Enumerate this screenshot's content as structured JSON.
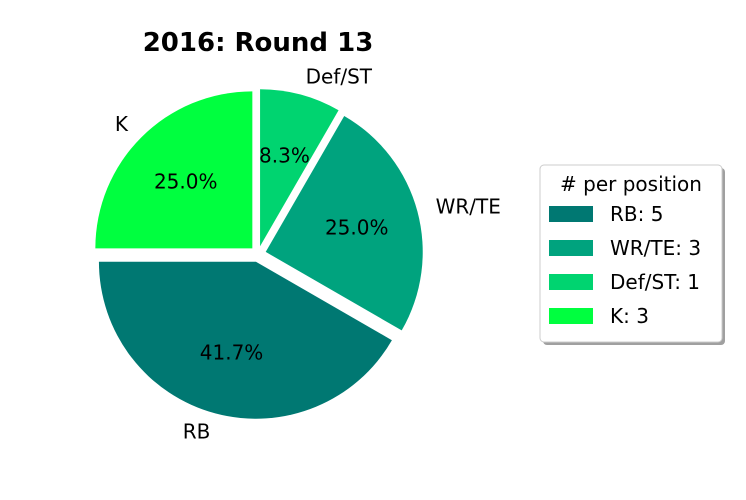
{
  "chart_data": {
    "type": "pie",
    "title": "2016: Round 13",
    "categories": [
      "RB",
      "WR/TE",
      "Def/ST",
      "K"
    ],
    "values": [
      5,
      3,
      1,
      3
    ],
    "percent_labels": [
      "41.7%",
      "25.0%",
      "8.3%",
      "25.0%"
    ],
    "colors": [
      "#007872",
      "#00a37e",
      "#00d470",
      "#00ff3f"
    ],
    "legend": {
      "title": "# per position",
      "placement": "center-right",
      "entries": [
        "RB: 5",
        "WR/TE: 3",
        "Def/ST: 1",
        "K: 3"
      ]
    }
  }
}
